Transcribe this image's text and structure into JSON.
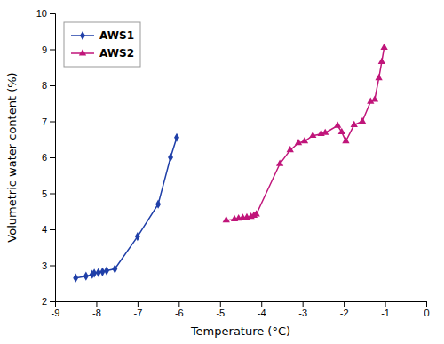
{
  "chart_data": {
    "type": "line",
    "xlabel": "Temperature (°C)",
    "ylabel": "Volumetric water content (%)",
    "series": [
      {
        "name": "AWS1",
        "color": "#1f3fa8",
        "marker": "diamond",
        "x": [
          -8.5,
          -8.25,
          -8.1,
          -8.05,
          -7.95,
          -7.85,
          -7.75,
          -7.55,
          -7.0,
          -6.5,
          -6.2,
          -6.05
        ],
        "values": [
          2.65,
          2.7,
          2.75,
          2.78,
          2.8,
          2.82,
          2.85,
          2.9,
          3.8,
          4.7,
          6.0,
          6.55
        ]
      },
      {
        "name": "AWS2",
        "color": "#c0157a",
        "marker": "triangle",
        "x": [
          -4.85,
          -4.65,
          -4.55,
          -4.45,
          -4.35,
          -4.25,
          -4.18,
          -4.12,
          -3.55,
          -3.3,
          -3.1,
          -2.95,
          -2.75,
          -2.55,
          -2.45,
          -2.15,
          -2.05,
          -1.95,
          -1.75,
          -1.55,
          -1.35,
          -1.25,
          -1.15,
          -1.08,
          -1.02
        ],
        "values": [
          4.25,
          4.28,
          4.3,
          4.32,
          4.33,
          4.35,
          4.38,
          4.42,
          5.82,
          6.2,
          6.4,
          6.45,
          6.6,
          6.65,
          6.68,
          6.88,
          6.7,
          6.45,
          6.9,
          7.0,
          7.55,
          7.6,
          8.2,
          8.65,
          9.05
        ]
      }
    ],
    "xlim": [
      -9,
      0
    ],
    "ylim": [
      2,
      10
    ],
    "xticks": [
      -9,
      -8,
      -7,
      -6,
      -5,
      -4,
      -3,
      -2,
      -1,
      0
    ],
    "yticks": [
      2,
      3,
      4,
      5,
      6,
      7,
      8,
      9,
      10
    ],
    "legend": "upper left"
  }
}
